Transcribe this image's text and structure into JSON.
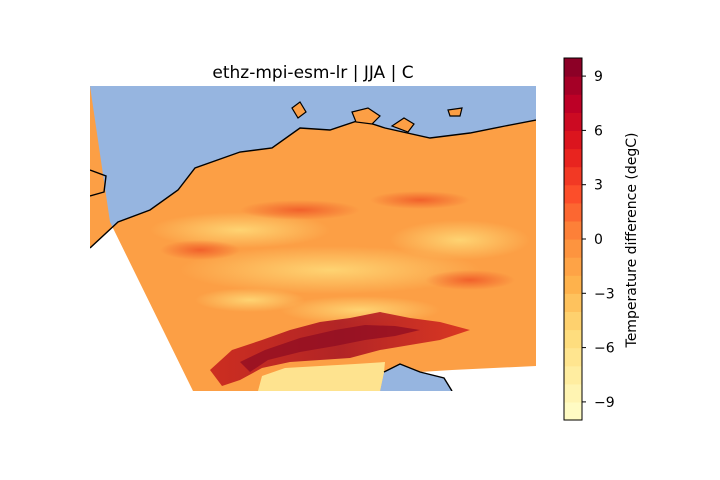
{
  "map": {
    "title": "ethz-mpi-esm-lr | JJA | C",
    "ocean_color": "#96b5e0",
    "land_base_color": "#fc9f45",
    "colorbar": {
      "label": "Temperature difference (degC)",
      "vmin": -10,
      "vmax": 10,
      "levels": 20,
      "ticks": [
        "9",
        "6",
        "3",
        "0",
        "−3",
        "−6",
        "−9"
      ],
      "tick_values": [
        9,
        6,
        3,
        0,
        -3,
        -6,
        -9
      ],
      "colormap": [
        "#ffffcc",
        "#ffeda0",
        "#fed976",
        "#feb24c",
        "#fd8d3c",
        "#fc4e2a",
        "#e31a1c",
        "#bd0026",
        "#800026"
      ]
    }
  }
}
